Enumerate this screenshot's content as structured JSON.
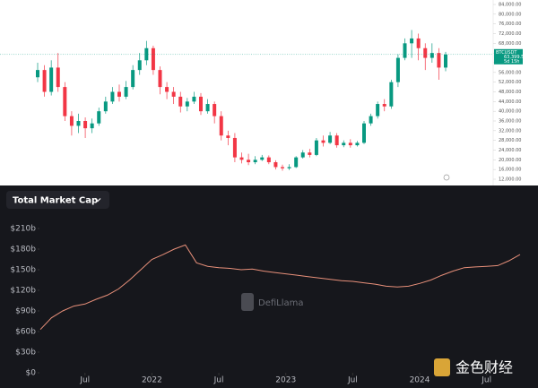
{
  "chart_data": [
    {
      "type": "candlestick",
      "symbol": "BTCUSDT",
      "countdown": "5d 15h",
      "up_color": "#089981",
      "down_color": "#f23645",
      "price_label": {
        "value": 63399.5,
        "label": "63,399.50"
      },
      "open": [
        54000,
        57000,
        48000,
        58000,
        50000,
        38000,
        34000,
        36000,
        33000,
        35000,
        40000,
        44000,
        48000,
        46000,
        50000,
        57000,
        61000,
        66000,
        57000,
        50000,
        48000,
        46000,
        42000,
        44000,
        46000,
        40000,
        43000,
        38000,
        30000,
        29000,
        21000,
        20000,
        19000,
        20000,
        21000,
        19000,
        17000,
        16500,
        17000,
        21000,
        23000,
        22000,
        28000,
        27000,
        30000,
        26000,
        27000,
        26000,
        27000,
        35000,
        38000,
        43000,
        42000,
        52000,
        62000,
        68000,
        70000,
        66000,
        62000,
        64000,
        58000
      ],
      "high": [
        60000,
        59000,
        61000,
        64000,
        52000,
        40000,
        39000,
        37500,
        37000,
        41500,
        46000,
        50000,
        51000,
        52500,
        59000,
        64000,
        69000,
        67000,
        58500,
        52000,
        50000,
        48000,
        45500,
        48000,
        47500,
        45000,
        44000,
        40000,
        32000,
        31000,
        23000,
        22500,
        21500,
        22000,
        21800,
        19800,
        18000,
        18200,
        21500,
        24000,
        24500,
        29000,
        30000,
        31500,
        31000,
        28000,
        28500,
        27800,
        36000,
        39000,
        44000,
        45000,
        53000,
        63500,
        70000,
        73500,
        72000,
        68000,
        68000,
        66000,
        64500
      ],
      "low": [
        52000,
        46000,
        46500,
        48000,
        36000,
        30000,
        31000,
        29000,
        31000,
        34000,
        39000,
        43000,
        44000,
        45000,
        49000,
        55000,
        59000,
        55000,
        47000,
        45000,
        43000,
        39500,
        40000,
        43000,
        38500,
        39000,
        35000,
        28000,
        26000,
        19000,
        18500,
        17800,
        18200,
        19500,
        18200,
        16000,
        15500,
        15800,
        16600,
        20500,
        21000,
        21500,
        25500,
        26500,
        25000,
        25200,
        25000,
        25500,
        26500,
        34000,
        37000,
        40000,
        41000,
        50000,
        61000,
        62000,
        61000,
        57000,
        60000,
        53000,
        56500
      ],
      "close": [
        57000,
        48000,
        58000,
        50000,
        38000,
        34000,
        36000,
        33000,
        35000,
        40000,
        44000,
        48000,
        46000,
        50000,
        57000,
        61000,
        66000,
        57000,
        50000,
        48000,
        46000,
        42000,
        44000,
        46000,
        40000,
        43000,
        38000,
        30000,
        29000,
        21000,
        20000,
        19000,
        20000,
        21000,
        19000,
        17000,
        16500,
        17000,
        21000,
        23000,
        22000,
        28000,
        27000,
        30000,
        26000,
        27000,
        26000,
        27000,
        35000,
        38000,
        43000,
        42000,
        52000,
        62000,
        68000,
        70000,
        66000,
        62000,
        64000,
        58000,
        63399.5
      ],
      "ylim": [
        12000,
        84000
      ],
      "yticks": [
        {
          "value": 12000,
          "label": "12,000.00"
        },
        {
          "value": 16000,
          "label": "16,000.00"
        },
        {
          "value": 20000,
          "label": "20,000.00"
        },
        {
          "value": 24000,
          "label": "24,000.00"
        },
        {
          "value": 28000,
          "label": "28,000.00"
        },
        {
          "value": 32000,
          "label": "32,000.00"
        },
        {
          "value": 36000,
          "label": "36,000.00"
        },
        {
          "value": 40000,
          "label": "40,000.00"
        },
        {
          "value": 44000,
          "label": "44,000.00"
        },
        {
          "value": 48000,
          "label": "48,000.00"
        },
        {
          "value": 52000,
          "label": "52,000.00"
        },
        {
          "value": 56000,
          "label": "56,000.00"
        },
        {
          "value": 60000,
          "label": "60,000.00"
        },
        {
          "value": 64000,
          "label": "64,000.00"
        },
        {
          "value": 68000,
          "label": "68,000.00"
        },
        {
          "value": 72000,
          "label": "72,000.00"
        },
        {
          "value": 76000,
          "label": "76,000.00"
        },
        {
          "value": 80000,
          "label": "80,000.00"
        },
        {
          "value": 84000,
          "label": "84,000.00"
        }
      ]
    },
    {
      "type": "line",
      "title": "Total Market Cap",
      "watermark": "DefiLlama",
      "source_mark": "金色财经",
      "color": "#e8907a",
      "x": [
        "2021-03",
        "2021-04",
        "2021-05",
        "2021-06",
        "2021-07",
        "2021-08",
        "2021-09",
        "2021-10",
        "2021-11",
        "2021-12",
        "2022-01",
        "2022-02",
        "2022-03",
        "2022-04",
        "2022-05",
        "2022-06",
        "2022-07",
        "2022-08",
        "2022-09",
        "2022-10",
        "2022-11",
        "2022-12",
        "2023-01",
        "2023-02",
        "2023-03",
        "2023-04",
        "2023-05",
        "2023-06",
        "2023-07",
        "2023-08",
        "2023-09",
        "2023-10",
        "2023-11",
        "2023-12",
        "2024-01",
        "2024-02",
        "2024-03",
        "2024-04",
        "2024-05",
        "2024-06",
        "2024-07",
        "2024-08",
        "2024-09",
        "2024-10"
      ],
      "values": [
        63,
        80,
        90,
        97,
        100,
        107,
        113,
        122,
        135,
        150,
        165,
        172,
        180,
        186,
        160,
        155,
        153,
        152,
        150,
        151,
        148,
        146,
        144,
        142,
        140,
        138,
        136,
        134,
        133,
        131,
        129,
        126,
        125,
        126,
        130,
        135,
        142,
        148,
        153,
        154,
        155,
        156,
        163,
        172
      ],
      "xlim": [
        "2021-03",
        "2024-10"
      ],
      "xticks": [
        {
          "value": "2021-07",
          "label": "Jul"
        },
        {
          "value": "2022-01",
          "label": "2022"
        },
        {
          "value": "2022-07",
          "label": "Jul"
        },
        {
          "value": "2023-01",
          "label": "2023"
        },
        {
          "value": "2023-07",
          "label": "Jul"
        },
        {
          "value": "2024-01",
          "label": "2024"
        },
        {
          "value": "2024-07",
          "label": "Jul"
        }
      ],
      "ylim": [
        0,
        210
      ],
      "yticks": [
        {
          "value": 0,
          "label": "$0"
        },
        {
          "value": 30,
          "label": "$30b"
        },
        {
          "value": 60,
          "label": "$60b"
        },
        {
          "value": 90,
          "label": "$90b"
        },
        {
          "value": 120,
          "label": "$120b"
        },
        {
          "value": 150,
          "label": "$150b"
        },
        {
          "value": 180,
          "label": "$180b"
        },
        {
          "value": 210,
          "label": "$210b"
        }
      ]
    }
  ]
}
